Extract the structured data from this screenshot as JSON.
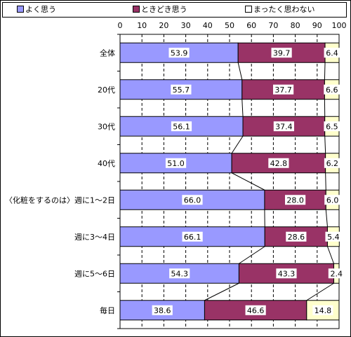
{
  "chart_data": {
    "type": "bar",
    "stacked": true,
    "orientation": "horizontal",
    "normalized_percent": true,
    "categories": [
      "全体",
      "20代",
      "30代",
      "40代",
      "〈化粧をするのは〉週に1〜2日",
      "週に3〜4日",
      "週に5〜6日",
      "毎日"
    ],
    "series": [
      {
        "name": "よく思う",
        "color": "#9999ff",
        "values": [
          53.9,
          55.7,
          56.1,
          51.0,
          66.0,
          66.1,
          54.3,
          38.6
        ]
      },
      {
        "name": "ときどき思う",
        "color": "#993366",
        "values": [
          39.7,
          37.7,
          37.4,
          42.8,
          28.0,
          28.6,
          43.3,
          46.6
        ]
      },
      {
        "name": "まったく思わない",
        "color": "#ffffcc",
        "values": [
          6.4,
          6.6,
          6.5,
          6.2,
          6.0,
          5.4,
          2.4,
          14.8
        ]
      }
    ],
    "data_labels": [
      [
        "53.9",
        "55.7",
        "56.1",
        "51.0",
        "66.0",
        "66.1",
        "54.3",
        "38.6"
      ],
      [
        "39.7",
        "37.7",
        "37.4",
        "42.8",
        "28.0",
        "28.6",
        "43.3",
        "46.6"
      ],
      [
        "6.4",
        "6.6",
        "6.5",
        "6.2",
        "6.0",
        "5.4",
        "2.4",
        "14.8"
      ]
    ],
    "x_ticks": [
      "0",
      "10",
      "20",
      "30",
      "40",
      "50",
      "60",
      "70",
      "80",
      "90",
      "100"
    ],
    "xlim": [
      0,
      100
    ],
    "grid": "vertical dashed",
    "series_lines": true,
    "legend": "top",
    "title": "",
    "xlabel": "",
    "ylabel": ""
  }
}
